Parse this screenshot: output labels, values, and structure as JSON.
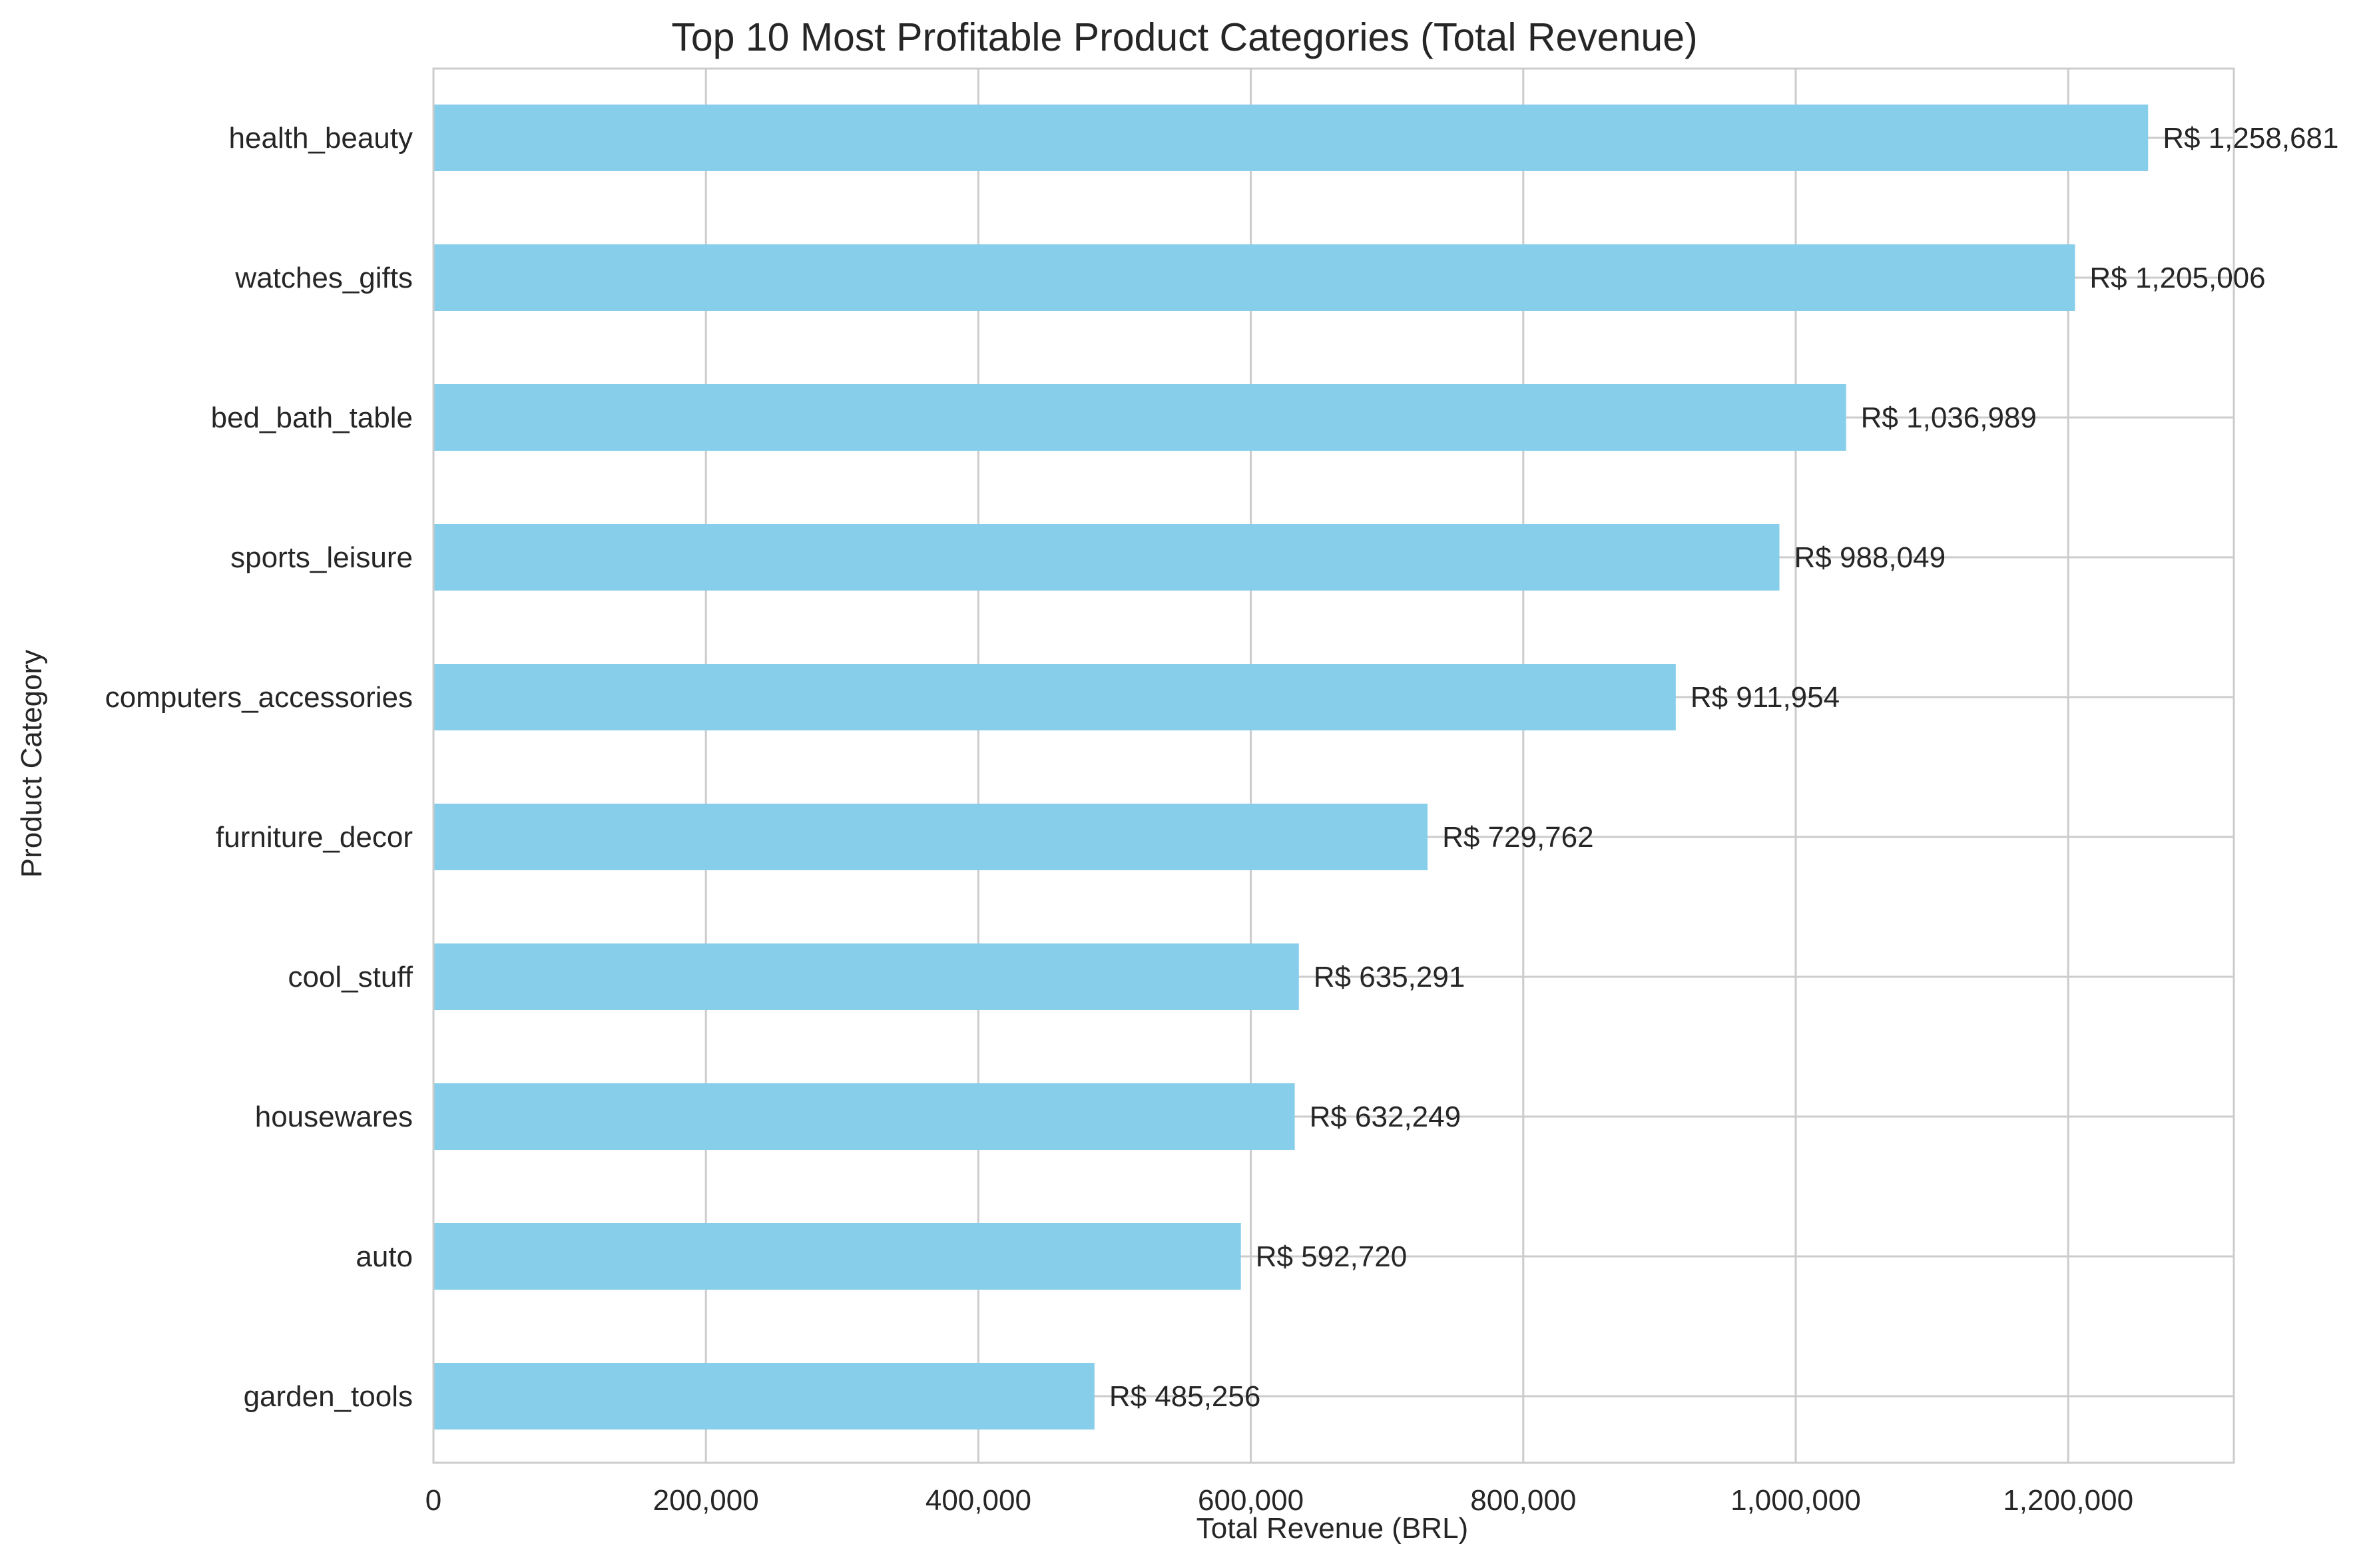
{
  "chart_data": {
    "type": "bar",
    "orientation": "horizontal",
    "title": "Top 10 Most Profitable Product Categories (Total Revenue)",
    "xlabel": "Total Revenue (BRL)",
    "ylabel": "Product Category",
    "categories": [
      "health_beauty",
      "watches_gifts",
      "bed_bath_table",
      "sports_leisure",
      "computers_accessories",
      "furniture_decor",
      "cool_stuff",
      "housewares",
      "auto",
      "garden_tools"
    ],
    "values": [
      1258681,
      1205006,
      1036989,
      988049,
      911954,
      729762,
      635291,
      632249,
      592720,
      485256
    ],
    "data_labels": [
      "R$ 1,258,681",
      "R$ 1,205,006",
      "R$ 1,036,989",
      "R$ 988,049",
      "R$ 911,954",
      "R$ 729,762",
      "R$ 635,291",
      "R$ 632,249",
      "R$ 592,720",
      "R$ 485,256"
    ],
    "xticks": [
      0,
      200000,
      400000,
      600000,
      800000,
      1000000,
      1200000
    ],
    "xtick_labels": [
      "0",
      "200,000",
      "400,000",
      "600,000",
      "800,000",
      "1,000,000",
      "1,200,000"
    ],
    "xlim": [
      0,
      1321615
    ],
    "grid": true,
    "bar_color": "#87CEEB"
  }
}
